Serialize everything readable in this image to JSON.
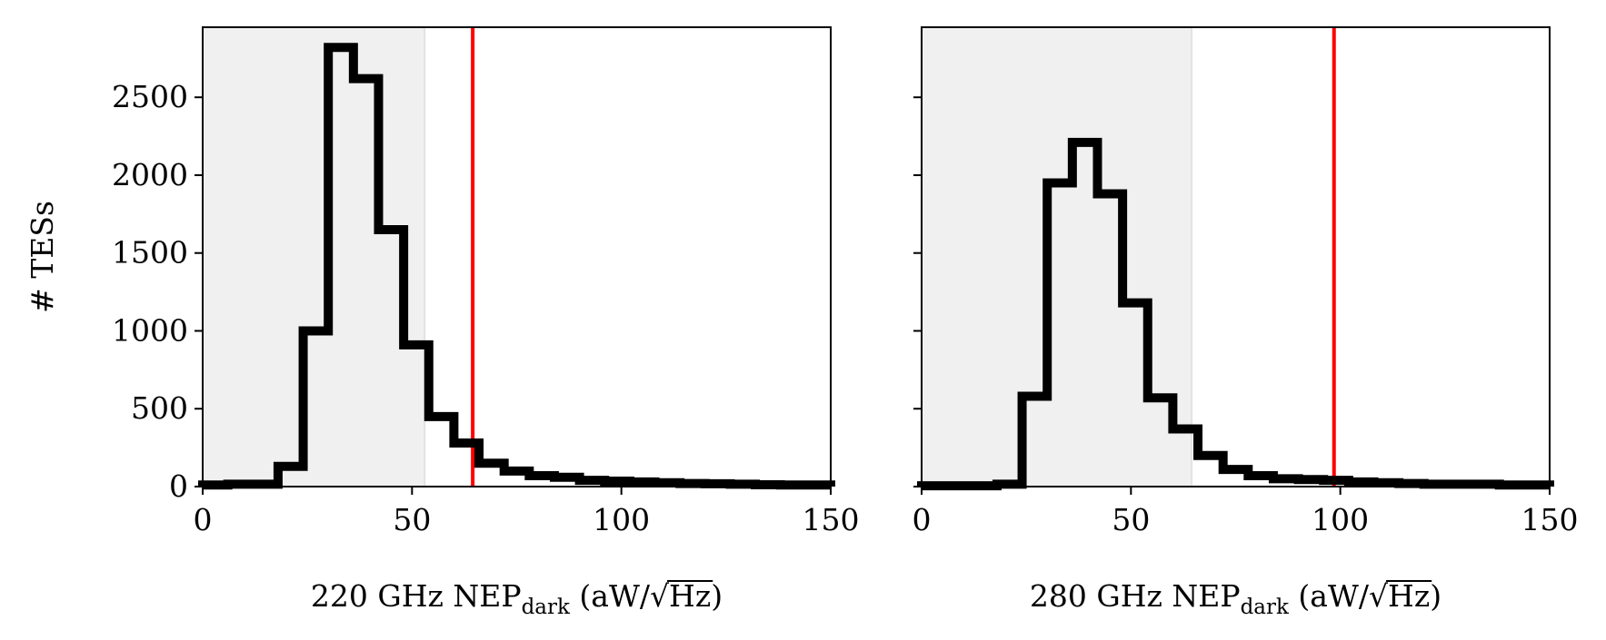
{
  "chart_data": [
    {
      "type": "histogram",
      "xlabel": {
        "pre": "220 GHz NEP",
        "sub": "dark",
        "post_open": " (aW/",
        "radicand": "Hz",
        "post_close": ")"
      },
      "ylabel": "# TESs",
      "xlim": [
        0,
        150
      ],
      "ylim": [
        0,
        2950
      ],
      "xticks": [
        "0",
        "50",
        "100",
        "150"
      ],
      "yticks": [
        "0",
        "500",
        "1000",
        "1500",
        "2000",
        "2500"
      ],
      "ytick_values": [
        0,
        500,
        1000,
        1500,
        2000,
        2500
      ],
      "show_ytick_labels": true,
      "shaded_region": [
        0,
        53
      ],
      "vline": 64.5,
      "bin_edges": [
        0,
        6,
        12,
        18,
        24,
        30,
        36,
        42,
        48,
        54,
        60,
        66,
        72,
        78,
        84,
        90,
        96,
        102,
        108,
        114,
        120,
        126,
        132,
        138,
        144,
        150
      ],
      "counts": [
        10,
        15,
        15,
        130,
        1000,
        2820,
        2620,
        1650,
        910,
        450,
        280,
        150,
        100,
        70,
        60,
        40,
        35,
        30,
        25,
        20,
        18,
        15,
        12,
        10,
        10
      ],
      "colors": {
        "shade": "#f0f0f0",
        "vline": "#ff0000",
        "hist": "#000000"
      }
    },
    {
      "type": "histogram",
      "xlabel": {
        "pre": "280 GHz NEP",
        "sub": "dark",
        "post_open": " (aW/",
        "radicand": "Hz",
        "post_close": ")"
      },
      "ylabel": "",
      "xlim": [
        0,
        150
      ],
      "ylim": [
        0,
        2950
      ],
      "xticks": [
        "0",
        "50",
        "100",
        "150"
      ],
      "yticks": [],
      "ytick_values": [
        0,
        500,
        1000,
        1500,
        2000,
        2500
      ],
      "show_ytick_labels": false,
      "shaded_region": [
        0,
        64.5
      ],
      "vline": 98.5,
      "bin_edges": [
        0,
        6,
        12,
        18,
        24,
        30,
        36,
        42,
        48,
        54,
        60,
        66,
        72,
        78,
        84,
        90,
        96,
        102,
        108,
        114,
        120,
        126,
        132,
        138,
        144,
        150
      ],
      "counts": [
        5,
        5,
        5,
        15,
        580,
        1950,
        2210,
        1880,
        1180,
        570,
        370,
        200,
        110,
        70,
        50,
        45,
        40,
        30,
        25,
        20,
        15,
        15,
        15,
        10,
        10
      ],
      "colors": {
        "shade": "#f0f0f0",
        "vline": "#ff0000",
        "hist": "#000000"
      }
    }
  ]
}
